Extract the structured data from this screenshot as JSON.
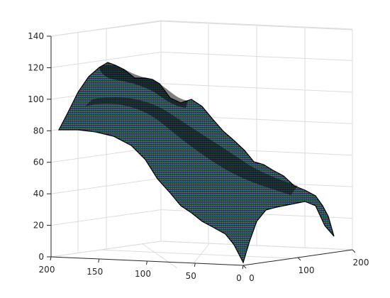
{
  "chart_data": {
    "type": "surface",
    "title": "",
    "xlabel": "",
    "ylabel": "",
    "zlabel": "",
    "grid": true,
    "x_ticks": [
      "200",
      "150",
      "100",
      "50",
      "0"
    ],
    "y_ticks": [
      "0",
      "100",
      "200"
    ],
    "z_ticks": [
      "0",
      "20",
      "40",
      "60",
      "80",
      "100",
      "120",
      "140"
    ],
    "xlim": [
      0,
      200
    ],
    "ylim": [
      0,
      200
    ],
    "zlim": [
      0,
      140
    ],
    "colormap": [
      "#440154",
      "#3b528b",
      "#21918c",
      "#5ec962",
      "#b5a042"
    ],
    "ridge_profile": [
      {
        "x": 200,
        "y": 0,
        "z": 80
      },
      {
        "x": 180,
        "y": 20,
        "z": 110
      },
      {
        "x": 160,
        "y": 40,
        "z": 124
      },
      {
        "x": 140,
        "y": 60,
        "z": 118
      },
      {
        "x": 120,
        "y": 80,
        "z": 112
      },
      {
        "x": 100,
        "y": 100,
        "z": 100
      },
      {
        "x": 80,
        "y": 120,
        "z": 90
      },
      {
        "x": 60,
        "y": 140,
        "z": 75
      },
      {
        "x": 40,
        "y": 160,
        "z": 60
      },
      {
        "x": 20,
        "y": 180,
        "z": 48
      },
      {
        "x": 0,
        "y": 200,
        "z": 12
      }
    ],
    "front_profile": [
      {
        "x": 200,
        "y": 0,
        "z": 80
      },
      {
        "x": 150,
        "y": 0,
        "z": 72
      },
      {
        "x": 100,
        "y": 0,
        "z": 50
      },
      {
        "x": 50,
        "y": 0,
        "z": 25
      },
      {
        "x": 0,
        "y": 0,
        "z": 0
      }
    ],
    "right_profile": [
      {
        "x": 0,
        "y": 0,
        "z": 0
      },
      {
        "x": 0,
        "y": 50,
        "z": 30
      },
      {
        "x": 0,
        "y": 100,
        "z": 35
      },
      {
        "x": 0,
        "y": 150,
        "z": 42
      },
      {
        "x": 0,
        "y": 200,
        "z": 12
      }
    ]
  }
}
